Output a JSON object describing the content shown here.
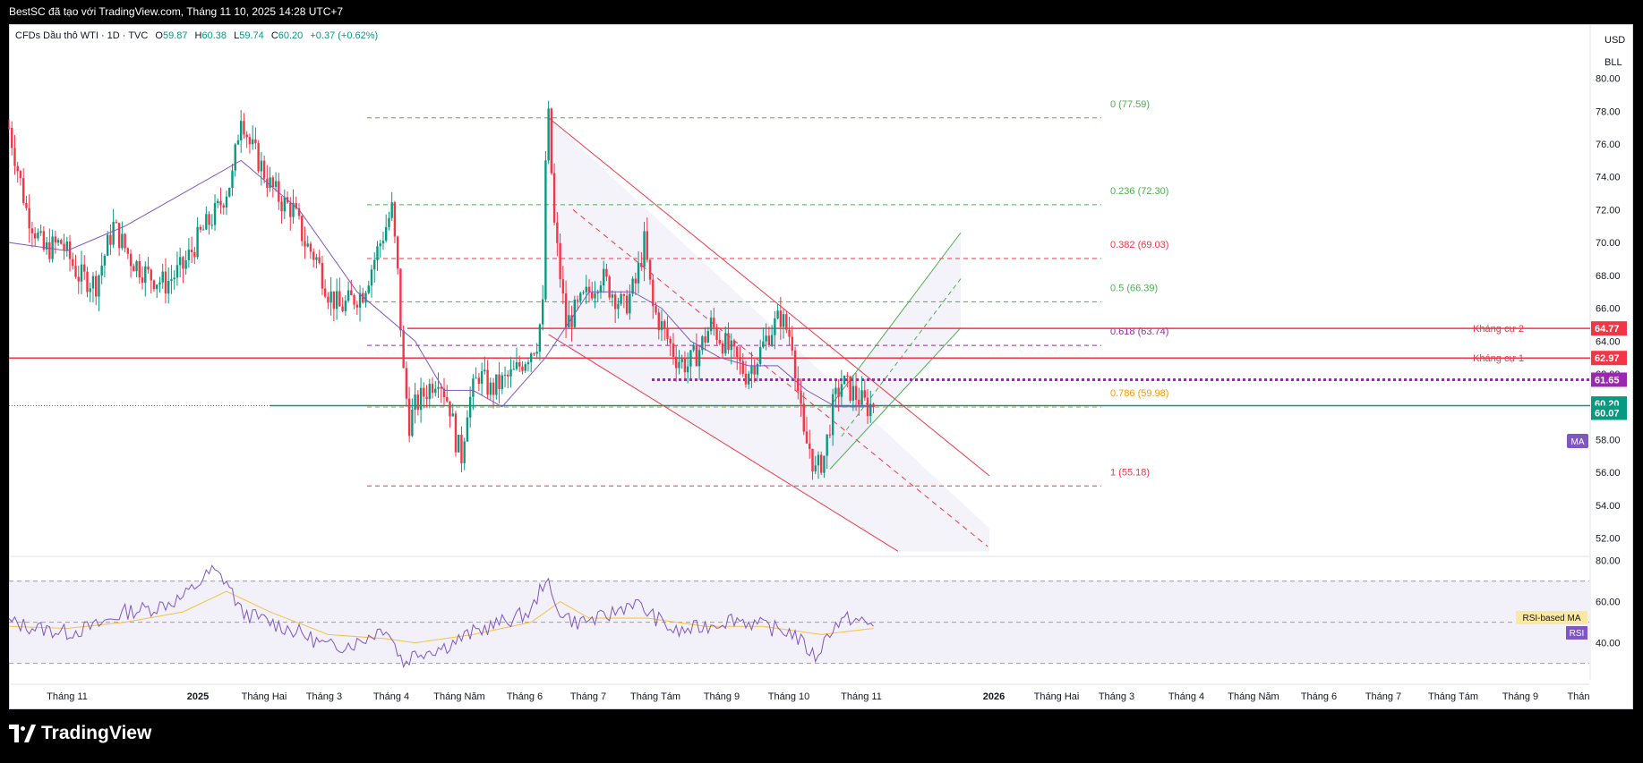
{
  "header": {
    "title": "BestSC đã tạo với TradingView.com, Tháng 11 10, 2025 14:28 UTC+7"
  },
  "legend": {
    "symbol": "CFDs Dầu thô WTI · 1D · TVC",
    "o_label": "O",
    "o": "59.87",
    "h_label": "H",
    "h": "60.38",
    "l_label": "L",
    "l": "59.74",
    "c_label": "C",
    "c": "60.20",
    "change": "+0.37 (+0.62%)"
  },
  "axis": {
    "currency": "USD",
    "unit": "BLL"
  },
  "footer": {
    "brand": "TradingView"
  },
  "colors": {
    "up": "#089981",
    "down": "#f23645",
    "ma": "#7e57c2",
    "rsi": "#7e57c2",
    "rsi_ma": "#f5c242",
    "resistance": "#f23645",
    "support": "#089981",
    "fib_green": "#4caf50",
    "fib_red": "#f23645",
    "fib_purple": "#9c27b0",
    "fib_orange": "#ff9800"
  },
  "chart_data": {
    "type": "candlestick",
    "price_axis": {
      "min": 51,
      "max": 81.5,
      "ticks": [
        80,
        78,
        76,
        74,
        72,
        70,
        68,
        66,
        64,
        62,
        60,
        58,
        56,
        54,
        52
      ]
    },
    "time_axis": {
      "labels": [
        "Tháng 11",
        "2025",
        "Tháng Hai",
        "Tháng 3",
        "Tháng 4",
        "Tháng Năm",
        "Tháng 6",
        "Tháng 7",
        "Tháng Tám",
        "Tháng 9",
        "Tháng 10",
        "Tháng 11",
        "2026",
        "Tháng Hai",
        "Tháng 3",
        "Tháng 4",
        "Tháng Năm",
        "Tháng 6",
        "Tháng 7",
        "Tháng Tám",
        "Tháng 9",
        "Thán"
      ],
      "bold": [
        1,
        12
      ]
    },
    "price_path": [
      [
        0,
        77
      ],
      [
        6,
        72
      ],
      [
        12,
        69.5
      ],
      [
        18,
        70
      ],
      [
        24,
        68
      ],
      [
        30,
        67.5
      ],
      [
        36,
        71
      ],
      [
        42,
        69
      ],
      [
        48,
        68
      ],
      [
        54,
        67.5
      ],
      [
        60,
        68.5
      ],
      [
        66,
        70.5
      ],
      [
        72,
        72
      ],
      [
        77,
        74
      ],
      [
        80,
        78
      ],
      [
        83,
        76
      ],
      [
        86,
        75
      ],
      [
        90,
        73.5
      ],
      [
        94,
        72.5
      ],
      [
        98,
        72
      ],
      [
        102,
        70
      ],
      [
        106,
        69
      ],
      [
        110,
        67
      ],
      [
        114,
        66
      ],
      [
        118,
        66.5
      ],
      [
        122,
        67
      ],
      [
        126,
        69
      ],
      [
        130,
        71
      ],
      [
        132,
        72
      ],
      [
        134,
        68
      ],
      [
        136,
        62
      ],
      [
        138,
        59
      ],
      [
        140,
        60
      ],
      [
        144,
        61
      ],
      [
        148,
        62
      ],
      [
        152,
        60
      ],
      [
        154,
        58
      ],
      [
        156,
        57
      ],
      [
        158,
        60
      ],
      [
        162,
        62
      ],
      [
        166,
        61
      ],
      [
        170,
        61.5
      ],
      [
        174,
        62
      ],
      [
        178,
        63
      ],
      [
        182,
        64
      ],
      [
        184,
        66
      ],
      [
        185,
        75
      ],
      [
        186,
        77.5
      ],
      [
        188,
        71
      ],
      [
        192,
        65
      ],
      [
        196,
        66
      ],
      [
        200,
        67
      ],
      [
        204,
        68
      ],
      [
        208,
        67
      ],
      [
        212,
        66
      ],
      [
        216,
        67.5
      ],
      [
        219,
        70
      ],
      [
        222,
        66
      ],
      [
        226,
        64.5
      ],
      [
        230,
        63
      ],
      [
        234,
        62.5
      ],
      [
        238,
        63.5
      ],
      [
        242,
        65
      ],
      [
        246,
        64
      ],
      [
        250,
        63
      ],
      [
        254,
        62
      ],
      [
        258,
        63
      ],
      [
        262,
        64.5
      ],
      [
        266,
        65.5
      ],
      [
        270,
        64
      ],
      [
        272,
        61
      ],
      [
        274,
        58
      ],
      [
        276,
        57.5
      ],
      [
        278,
        56
      ],
      [
        281,
        57
      ],
      [
        284,
        60
      ],
      [
        287,
        61.5
      ],
      [
        290,
        61
      ],
      [
        293,
        60.5
      ],
      [
        296,
        60
      ],
      [
        298,
        60.2
      ]
    ],
    "moving_average": [
      [
        0,
        70
      ],
      [
        20,
        69.5
      ],
      [
        40,
        71
      ],
      [
        60,
        73
      ],
      [
        80,
        75
      ],
      [
        100,
        72
      ],
      [
        120,
        67
      ],
      [
        140,
        64
      ],
      [
        150,
        61
      ],
      [
        160,
        61
      ],
      [
        170,
        60
      ],
      [
        185,
        63
      ],
      [
        200,
        67
      ],
      [
        215,
        67
      ],
      [
        225,
        66
      ],
      [
        235,
        64
      ],
      [
        245,
        63
      ],
      [
        255,
        62.5
      ],
      [
        265,
        62.5
      ],
      [
        275,
        61
      ],
      [
        285,
        60
      ],
      [
        298,
        60
      ]
    ],
    "rsi_axis": {
      "min": 22,
      "max": 82,
      "ticks": [
        80,
        60,
        40
      ],
      "bands": [
        70,
        50,
        30
      ]
    },
    "rsi": [
      [
        0,
        50
      ],
      [
        10,
        47
      ],
      [
        20,
        45
      ],
      [
        30,
        48
      ],
      [
        40,
        55
      ],
      [
        50,
        57
      ],
      [
        60,
        62
      ],
      [
        70,
        75
      ],
      [
        75,
        70
      ],
      [
        80,
        55
      ],
      [
        90,
        50
      ],
      [
        100,
        45
      ],
      [
        110,
        38
      ],
      [
        120,
        40
      ],
      [
        130,
        48
      ],
      [
        136,
        30
      ],
      [
        140,
        35
      ],
      [
        150,
        38
      ],
      [
        160,
        45
      ],
      [
        170,
        50
      ],
      [
        180,
        55
      ],
      [
        185,
        72
      ],
      [
        188,
        58
      ],
      [
        195,
        50
      ],
      [
        205,
        52
      ],
      [
        215,
        60
      ],
      [
        220,
        55
      ],
      [
        230,
        45
      ],
      [
        240,
        48
      ],
      [
        250,
        52
      ],
      [
        260,
        48
      ],
      [
        270,
        45
      ],
      [
        278,
        33
      ],
      [
        284,
        48
      ],
      [
        290,
        52
      ],
      [
        298,
        48
      ]
    ],
    "rsi_ma": [
      [
        0,
        48
      ],
      [
        20,
        47
      ],
      [
        40,
        50
      ],
      [
        60,
        55
      ],
      [
        75,
        65
      ],
      [
        90,
        55
      ],
      [
        110,
        44
      ],
      [
        130,
        42
      ],
      [
        140,
        40
      ],
      [
        160,
        44
      ],
      [
        180,
        50
      ],
      [
        190,
        60
      ],
      [
        200,
        52
      ],
      [
        220,
        52
      ],
      [
        240,
        48
      ],
      [
        260,
        48
      ],
      [
        280,
        44
      ],
      [
        298,
        47
      ]
    ],
    "fib_levels": [
      {
        "label": "0 (77.59)",
        "price": 77.59,
        "color": "#4caf50"
      },
      {
        "label": "0.236 (72.30)",
        "price": 72.3,
        "color": "#4caf50"
      },
      {
        "label": "0.382 (69.03)",
        "price": 69.03,
        "color": "#f23645"
      },
      {
        "label": "0.5 (66.39)",
        "price": 66.39,
        "color": "#4caf50"
      },
      {
        "label": "0.618 (63.74)",
        "price": 63.74,
        "color": "#9c27b0"
      },
      {
        "label": "0.786 (59.98)",
        "price": 59.98,
        "color": "#ff9800"
      },
      {
        "label": "1 (55.18)",
        "price": 55.18,
        "color": "#f23645"
      }
    ],
    "horizontal_lines": [
      {
        "label": "Kháng cự 2",
        "price": 64.77,
        "tag": "64.77",
        "color": "#f23645"
      },
      {
        "label": "Kháng cự 1",
        "price": 62.97,
        "tag": "62.97",
        "color": "#f23645"
      }
    ],
    "price_tags": [
      {
        "text": "61.65",
        "price": 61.65,
        "color": "#9c27b0"
      },
      {
        "text": "60.20",
        "price": 60.2,
        "color": "#089981"
      },
      {
        "text": "60.07",
        "price": 60.07,
        "color": "#089981"
      }
    ],
    "indicator_tags": {
      "ma": "MA",
      "rsi_ma": "RSI-based MA",
      "rsi": "RSI"
    }
  }
}
